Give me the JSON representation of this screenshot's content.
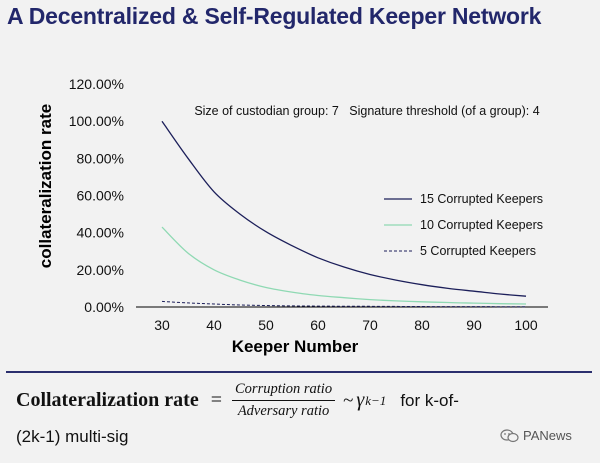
{
  "header": {
    "title": "A Decentralized & Self-Regulated Keeper Network"
  },
  "chart_data": {
    "type": "line",
    "title": "A Decentralized & Self-Regulated Keeper Network",
    "xlabel": "Keeper Number",
    "ylabel": "collateralization rate",
    "xlim": [
      30,
      100
    ],
    "ylim": [
      0,
      1.2
    ],
    "x_ticks": [
      30,
      40,
      50,
      60,
      70,
      80,
      90,
      100
    ],
    "x_tick_labels": [
      "30",
      "40",
      "50",
      "60",
      "70",
      "80",
      "90",
      "100"
    ],
    "y_ticks": [
      0,
      0.2,
      0.4,
      0.6,
      0.8,
      1.0,
      1.2
    ],
    "y_tick_labels": [
      "0.00%",
      "20.00%",
      "40.00%",
      "60.00%",
      "80.00%",
      "100.00%",
      "120.00%"
    ],
    "grid": false,
    "legend_position": "right",
    "annotation": "Size of custodian group: 7   Signature threshold (of a group): 4",
    "x": [
      30,
      35,
      40,
      45,
      50,
      55,
      60,
      65,
      70,
      75,
      80,
      85,
      90,
      95,
      100
    ],
    "series": [
      {
        "name": "15 Corrupted Keepers",
        "color": "#1c1f5a",
        "dash": false,
        "values": [
          1.0,
          0.8,
          0.62,
          0.5,
          0.405,
          0.33,
          0.265,
          0.215,
          0.175,
          0.145,
          0.12,
          0.1,
          0.085,
          0.07,
          0.058
        ]
      },
      {
        "name": "10 Corrupted Keepers",
        "color": "#8fd9b3",
        "dash": false,
        "values": [
          0.43,
          0.29,
          0.2,
          0.145,
          0.105,
          0.08,
          0.062,
          0.05,
          0.04,
          0.033,
          0.028,
          0.024,
          0.021,
          0.018,
          0.016
        ]
      },
      {
        "name": "5 Corrupted Keepers",
        "color": "#1c1f5a",
        "dash": true,
        "values": [
          0.03,
          0.022,
          0.016,
          0.011,
          0.008,
          0.006,
          0.005,
          0.004,
          0.0035,
          0.003,
          0.0025,
          0.002,
          0.002,
          0.0015,
          0.0015
        ]
      }
    ]
  },
  "formula": {
    "label": "Collateralization rate",
    "equals": "=",
    "numerator": "Corruption ratio",
    "denominator": "Adversary ratio",
    "approx": "~",
    "gamma": "γ",
    "exponent": "k−1",
    "suffix": "for k-of-",
    "line2": "(2k-1) multi-sig"
  },
  "watermark": {
    "text": "PANews",
    "icon": "wechat-logo-icon"
  }
}
